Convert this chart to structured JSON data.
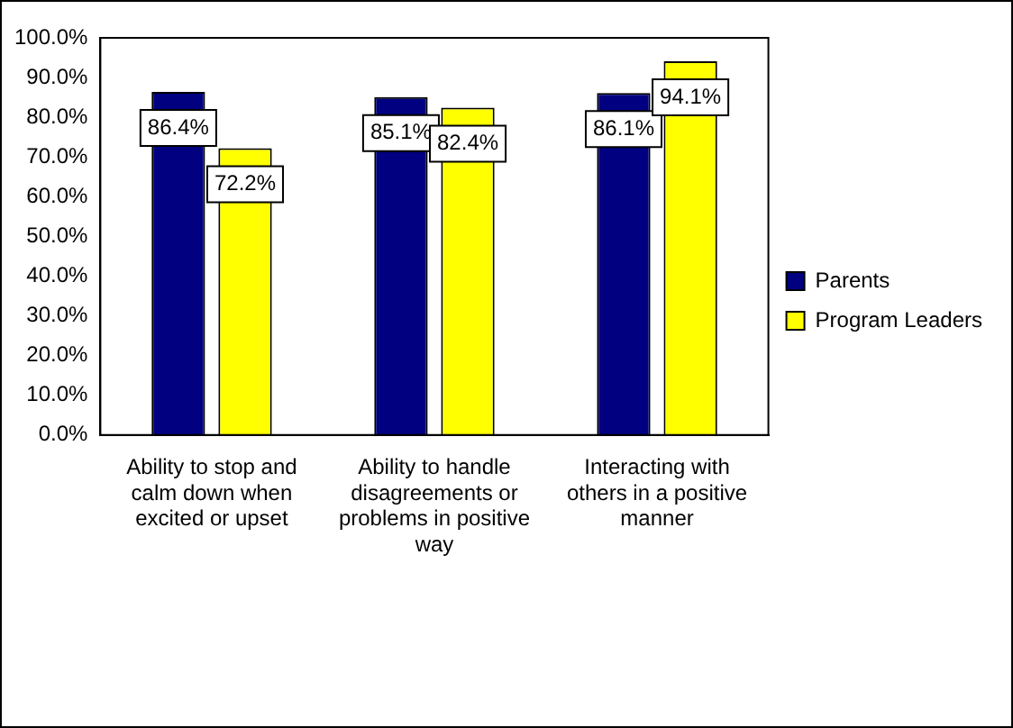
{
  "chart_data": {
    "type": "bar",
    "categories": [
      "Ability to stop and calm down when excited or upset",
      "Ability to handle disagreements or problems in positive way",
      "Interacting with others in a positive manner"
    ],
    "series": [
      {
        "name": "Parents",
        "color": "#000080",
        "values": [
          86.4,
          85.1,
          86.1
        ],
        "value_labels": [
          "86.4%",
          "85.1%",
          "86.1%"
        ]
      },
      {
        "name": "Program Leaders",
        "color": "#ffff00",
        "values": [
          72.2,
          82.4,
          94.1
        ],
        "value_labels": [
          "72.2%",
          "82.4%",
          "94.1%"
        ]
      }
    ],
    "ylim": [
      0,
      100
    ],
    "yticks": [
      {
        "value": 0,
        "label": "0.0%"
      },
      {
        "value": 10,
        "label": "10.0%"
      },
      {
        "value": 20,
        "label": "20.0%"
      },
      {
        "value": 30,
        "label": "30.0%"
      },
      {
        "value": 40,
        "label": "40.0%"
      },
      {
        "value": 50,
        "label": "50.0%"
      },
      {
        "value": 60,
        "label": "60.0%"
      },
      {
        "value": 70,
        "label": "70.0%"
      },
      {
        "value": 80,
        "label": "80.0%"
      },
      {
        "value": 90,
        "label": "90.0%"
      },
      {
        "value": 100,
        "label": "100.0%"
      }
    ],
    "grid": false,
    "legend": "right"
  }
}
